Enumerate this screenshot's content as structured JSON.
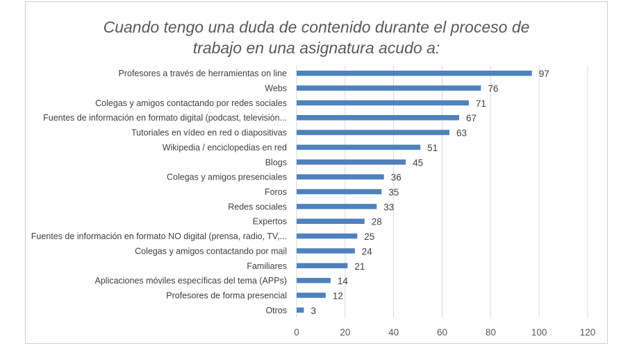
{
  "chart_data": {
    "type": "bar",
    "orientation": "horizontal",
    "title_lines": [
      "Cuando tengo una duda de contenido durante el proceso de",
      "trabajo en una asignatura acudo a:"
    ],
    "categories": [
      "Profesores a través de herramientas on line",
      "Webs",
      "Colegas y amigos contactando por redes sociales",
      "Fuentes de información en formato digital (podcast, televisión...",
      "Tutoriales en vídeo en red o diapositivas",
      "Wikipedia / enciclopedias en red",
      "Blogs",
      "Colegas y amigos presenciales",
      "Foros",
      "Redes sociales",
      "Expertos",
      "Fuentes de información en formato NO digital (prensa, radio, TV,...",
      "Colegas y amigos contactando por mail",
      "Familiares",
      "Aplicaciones móviles específicas del tema (APPs)",
      "Profesores de forma presencial",
      "Otros"
    ],
    "values": [
      97,
      76,
      71,
      67,
      63,
      51,
      45,
      36,
      35,
      33,
      28,
      25,
      24,
      21,
      14,
      12,
      3
    ],
    "xlim": [
      0,
      120
    ],
    "xticks": [
      "0",
      "20",
      "40",
      "60",
      "80",
      "100",
      "120"
    ],
    "grid": true,
    "bar_color": "#4f81bd",
    "grid_color": "#d9d9d9"
  }
}
